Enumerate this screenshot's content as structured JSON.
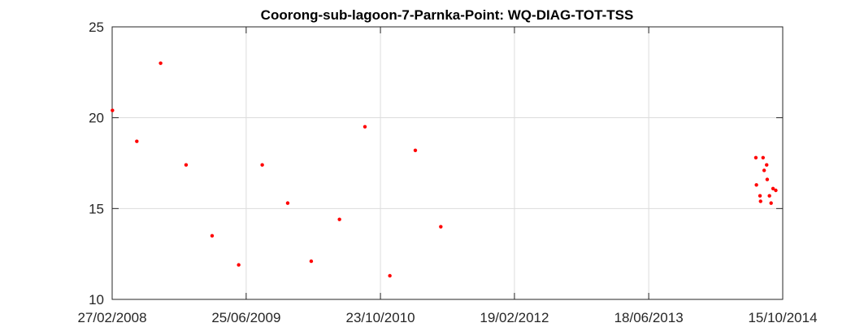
{
  "chart_data": {
    "type": "scatter",
    "title": "Coorong-sub-lagoon-7-Parnka-Point: WQ-DIAG-TOT-TSS",
    "xlabel": "",
    "ylabel": "",
    "x_type": "date",
    "xlim": [
      "2008-02-27",
      "2014-10-15"
    ],
    "ylim": [
      10,
      25
    ],
    "x_ticks": [
      "2008-02-27",
      "2009-06-25",
      "2010-10-23",
      "2012-02-19",
      "2013-06-18",
      "2014-10-15"
    ],
    "x_tick_labels": [
      "27/02/2008",
      "25/06/2009",
      "23/10/2010",
      "19/02/2012",
      "18/06/2013",
      "15/10/2014"
    ],
    "y_ticks": [
      10,
      15,
      20,
      25
    ],
    "y_tick_labels": [
      "10",
      "15",
      "20",
      "25"
    ],
    "grid": true,
    "marker_color": "#ff0000",
    "series": [
      {
        "name": "",
        "points": [
          {
            "x": "2008-02-28",
            "y": 20.4
          },
          {
            "x": "2008-05-26",
            "y": 18.7
          },
          {
            "x": "2008-08-20",
            "y": 23.0
          },
          {
            "x": "2008-11-20",
            "y": 17.4
          },
          {
            "x": "2009-02-22",
            "y": 13.5
          },
          {
            "x": "2009-05-29",
            "y": 11.9
          },
          {
            "x": "2009-08-22",
            "y": 17.4
          },
          {
            "x": "2009-11-22",
            "y": 15.3
          },
          {
            "x": "2010-02-15",
            "y": 12.1
          },
          {
            "x": "2010-05-28",
            "y": 14.4
          },
          {
            "x": "2010-08-28",
            "y": 19.5
          },
          {
            "x": "2010-11-26",
            "y": 11.3
          },
          {
            "x": "2011-02-26",
            "y": 18.2
          },
          {
            "x": "2011-05-29",
            "y": 14.0
          },
          {
            "x": "2014-07-10",
            "y": 17.8
          },
          {
            "x": "2014-07-12",
            "y": 16.3
          },
          {
            "x": "2014-07-25",
            "y": 15.7
          },
          {
            "x": "2014-07-27",
            "y": 15.4
          },
          {
            "x": "2014-08-05",
            "y": 17.8
          },
          {
            "x": "2014-08-09",
            "y": 17.1
          },
          {
            "x": "2014-08-18",
            "y": 17.4
          },
          {
            "x": "2014-08-20",
            "y": 16.6
          },
          {
            "x": "2014-08-28",
            "y": 15.7
          },
          {
            "x": "2014-09-03",
            "y": 15.3
          },
          {
            "x": "2014-09-10",
            "y": 16.1
          },
          {
            "x": "2014-09-20",
            "y": 16.0
          }
        ]
      }
    ]
  }
}
